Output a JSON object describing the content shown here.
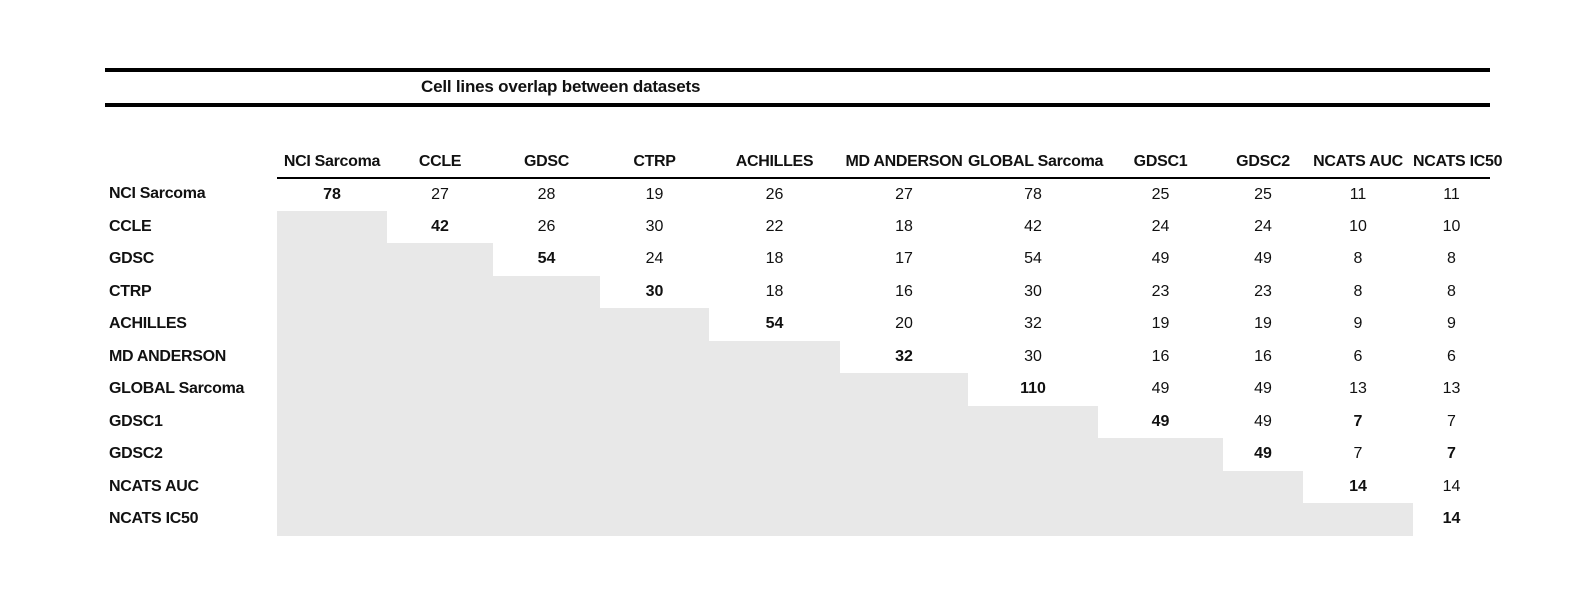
{
  "title": "Cell lines overlap between datasets",
  "colors": {
    "shaded_cell": "#e8e8e8",
    "rule": "#000000",
    "text": "#111111"
  },
  "table": {
    "columns": [
      "NCI Sarcoma",
      "CCLE",
      "GDSC",
      "CTRP",
      "ACHILLES",
      "MD ANDERSON",
      "GLOBAL Sarcoma",
      "GDSC1",
      "GDSC2",
      "NCATS AUC",
      "NCATS IC50"
    ],
    "rows": [
      {
        "label": "NCI Sarcoma",
        "cells": [
          {
            "v": "78",
            "b": true
          },
          {
            "v": "27"
          },
          {
            "v": "28"
          },
          {
            "v": "19"
          },
          {
            "v": "26"
          },
          {
            "v": "27"
          },
          {
            "v": "78"
          },
          {
            "v": "25"
          },
          {
            "v": "25"
          },
          {
            "v": "11"
          },
          {
            "v": "11"
          }
        ]
      },
      {
        "label": "CCLE",
        "cells": [
          null,
          {
            "v": "42",
            "b": true
          },
          {
            "v": "26"
          },
          {
            "v": "30"
          },
          {
            "v": "22"
          },
          {
            "v": "18"
          },
          {
            "v": "42"
          },
          {
            "v": "24"
          },
          {
            "v": "24"
          },
          {
            "v": "10"
          },
          {
            "v": "10"
          }
        ]
      },
      {
        "label": "GDSC",
        "cells": [
          null,
          null,
          {
            "v": "54",
            "b": true
          },
          {
            "v": "24"
          },
          {
            "v": "18"
          },
          {
            "v": "17"
          },
          {
            "v": "54"
          },
          {
            "v": "49"
          },
          {
            "v": "49"
          },
          {
            "v": "8"
          },
          {
            "v": "8"
          }
        ]
      },
      {
        "label": "CTRP",
        "cells": [
          null,
          null,
          null,
          {
            "v": "30",
            "b": true
          },
          {
            "v": "18"
          },
          {
            "v": "16"
          },
          {
            "v": "30"
          },
          {
            "v": "23"
          },
          {
            "v": "23"
          },
          {
            "v": "8"
          },
          {
            "v": "8"
          }
        ]
      },
      {
        "label": "ACHILLES",
        "cells": [
          null,
          null,
          null,
          null,
          {
            "v": "54",
            "b": true
          },
          {
            "v": "20"
          },
          {
            "v": "32"
          },
          {
            "v": "19"
          },
          {
            "v": "19"
          },
          {
            "v": "9"
          },
          {
            "v": "9"
          }
        ]
      },
      {
        "label": "MD ANDERSON",
        "cells": [
          null,
          null,
          null,
          null,
          null,
          {
            "v": "32",
            "b": true
          },
          {
            "v": "30"
          },
          {
            "v": "16"
          },
          {
            "v": "16"
          },
          {
            "v": "6"
          },
          {
            "v": "6"
          }
        ]
      },
      {
        "label": "GLOBAL Sarcoma",
        "cells": [
          null,
          null,
          null,
          null,
          null,
          null,
          {
            "v": "110",
            "b": true
          },
          {
            "v": "49"
          },
          {
            "v": "49"
          },
          {
            "v": "13"
          },
          {
            "v": "13"
          }
        ]
      },
      {
        "label": "GDSC1",
        "cells": [
          null,
          null,
          null,
          null,
          null,
          null,
          null,
          {
            "v": "49",
            "b": true
          },
          {
            "v": "49"
          },
          {
            "v": "7",
            "b": true
          },
          {
            "v": "7"
          }
        ]
      },
      {
        "label": "GDSC2",
        "cells": [
          null,
          null,
          null,
          null,
          null,
          null,
          null,
          null,
          {
            "v": "49",
            "b": true
          },
          {
            "v": "7"
          },
          {
            "v": "7",
            "b": true
          }
        ]
      },
      {
        "label": "NCATS AUC",
        "cells": [
          null,
          null,
          null,
          null,
          null,
          null,
          null,
          null,
          null,
          {
            "v": "14",
            "b": true
          },
          {
            "v": "14"
          }
        ]
      },
      {
        "label": "NCATS IC50",
        "cells": [
          null,
          null,
          null,
          null,
          null,
          null,
          null,
          null,
          null,
          null,
          {
            "v": "14",
            "b": true
          }
        ]
      }
    ]
  }
}
